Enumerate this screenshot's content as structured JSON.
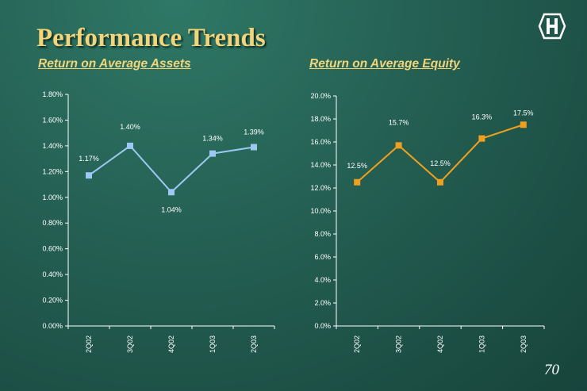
{
  "title": "Performance Trends",
  "page_number": "70",
  "colors": {
    "title": "#f2d47a",
    "roa_series": "#9cc8f2",
    "roe_series": "#f0a020",
    "axis": "#ffffff"
  },
  "logo_icon": "bank-logo-icon",
  "chart_data": [
    {
      "type": "line",
      "title": "Return on Average Assets",
      "categories": [
        "2Q02",
        "3Q02",
        "4Q02",
        "1Q03",
        "2Q03"
      ],
      "values": [
        1.17,
        1.4,
        1.04,
        1.34,
        1.39
      ],
      "data_labels": [
        "1.17%",
        "1.40%",
        "1.04%",
        "1.34%",
        "1.39%"
      ],
      "ylim": [
        0,
        1.8
      ],
      "yticks": [
        "0.00%",
        "0.20%",
        "0.40%",
        "0.60%",
        "0.80%",
        "1.00%",
        "1.20%",
        "1.40%",
        "1.60%",
        "1.80%"
      ],
      "xlabel": "",
      "ylabel": "",
      "grid": false,
      "legend": "none"
    },
    {
      "type": "line",
      "title": "Return on Average Equity",
      "categories": [
        "2Q02",
        "3Q02",
        "4Q02",
        "1Q03",
        "2Q03"
      ],
      "values": [
        12.5,
        15.7,
        12.5,
        16.3,
        17.5
      ],
      "data_labels": [
        "12.5%",
        "15.7%",
        "12.5%",
        "16.3%",
        "17.5%"
      ],
      "ylim": [
        0,
        20
      ],
      "yticks": [
        "0.0%",
        "2.0%",
        "4.0%",
        "6.0%",
        "8.0%",
        "10.0%",
        "12.0%",
        "14.0%",
        "16.0%",
        "18.0%",
        "20.0%"
      ],
      "xlabel": "",
      "ylabel": "",
      "grid": false,
      "legend": "none"
    }
  ]
}
